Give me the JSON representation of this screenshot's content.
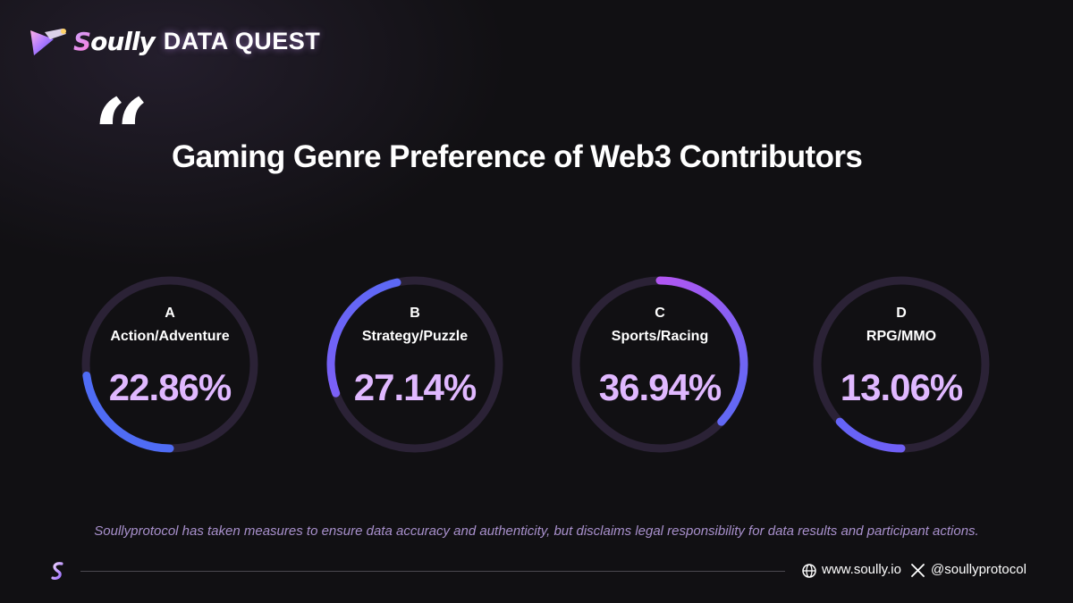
{
  "header": {
    "brand_initial": "S",
    "brand_rest": "oully",
    "subtitle": "DATA QUEST"
  },
  "quote_mark": "“",
  "chart_data": {
    "type": "pie",
    "title": "Gaming Genre Preference of Web3 Contributors",
    "unit": "%",
    "categories": [
      {
        "letter": "A",
        "label": "Action/Adventure",
        "value": 22.86,
        "display": "22.86%",
        "color": "#4f6cf5"
      },
      {
        "letter": "B",
        "label": "Strategy/Puzzle",
        "value": 27.14,
        "display": "27.14%",
        "color": "#8a5cf6"
      },
      {
        "letter": "C",
        "label": "Sports/Racing",
        "value": 36.94,
        "display": "36.94%",
        "color": "#d14ff0"
      },
      {
        "letter": "D",
        "label": "RPG/MMO",
        "value": 13.06,
        "display": "13.06%",
        "color": "#7b5cf7"
      }
    ]
  },
  "disclaimer": "Soullyprotocol has taken measures to ensure data accuracy and authenticity, but disclaims legal responsibility for data results and participant actions.",
  "footer": {
    "website": "www.soully.io",
    "handle": "@soullyprotocol",
    "icons": [
      "soully-logo-icon",
      "globe-icon",
      "x-icon"
    ]
  },
  "colors": {
    "background": "#111013",
    "percent_text": "#e0b8ff",
    "ring_track": "#2b2236",
    "disclaimer": "#a890cc"
  }
}
